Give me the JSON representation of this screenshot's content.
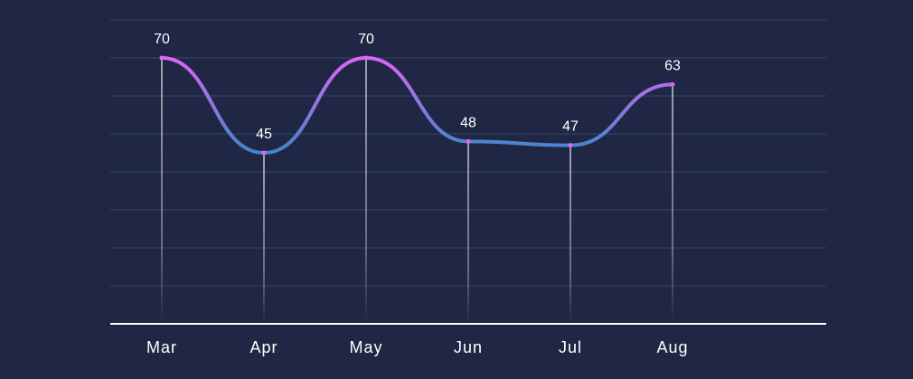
{
  "chart_data": {
    "type": "line",
    "categories": [
      "Mar",
      "Apr",
      "May",
      "Jun",
      "Jul",
      "Aug"
    ],
    "values": [
      70,
      45,
      70,
      48,
      47,
      63
    ],
    "title": "",
    "xlabel": "",
    "ylabel": "",
    "ylim": [
      0,
      80
    ],
    "grid": true,
    "smooth": true,
    "show_data_labels": true,
    "show_drop_lines": true,
    "colors": {
      "background": "#1f2744",
      "grid": "#3a4466",
      "axis": "#ffffff",
      "line_gradient": [
        "#dd66f2",
        "#3f86cc"
      ],
      "drop_line": "#ffffff",
      "text": "#ffffff"
    }
  }
}
